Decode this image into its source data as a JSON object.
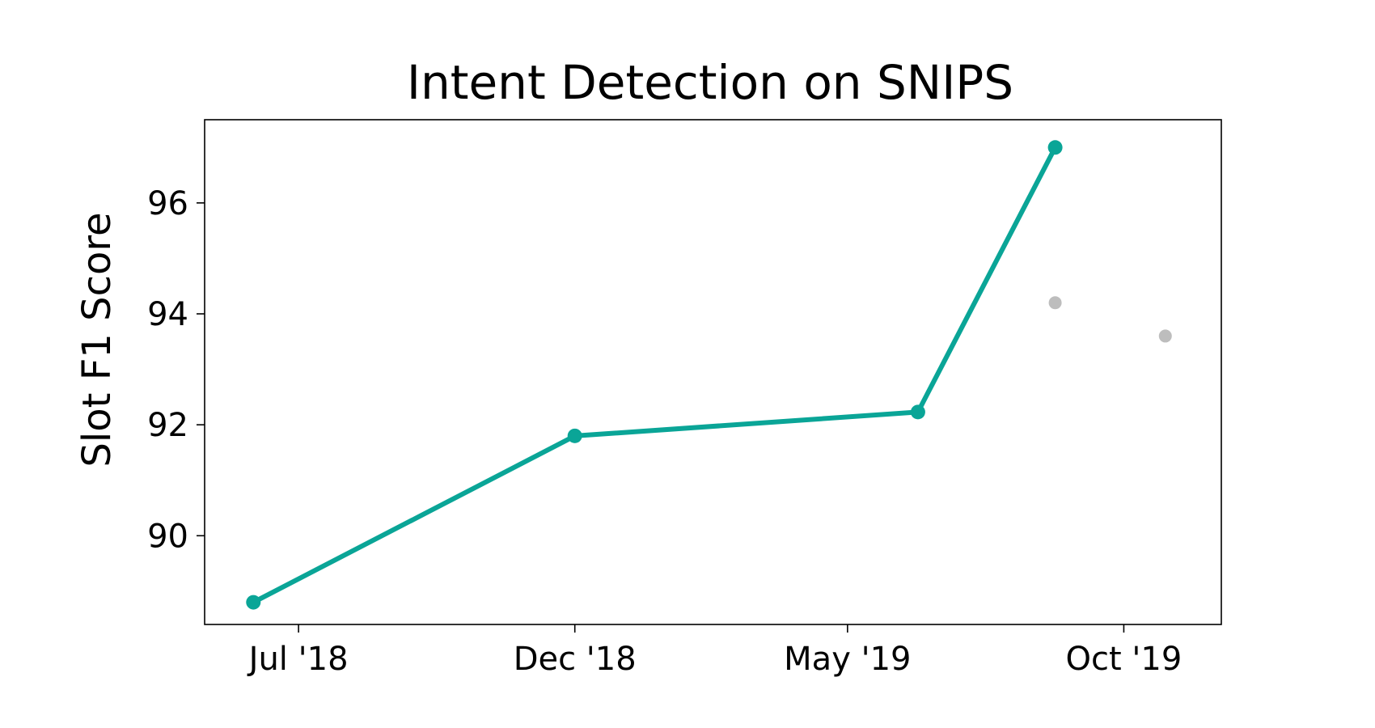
{
  "chart_data": {
    "type": "line",
    "title": "Intent Detection on SNIPS",
    "xlabel": "",
    "ylabel": "Slot F1 Score",
    "xlim": [
      "2018-05-10",
      "2019-11-24"
    ],
    "ylim": [
      88.4,
      97.5
    ],
    "grid": false,
    "x_ticks": [
      {
        "date": "2018-07-01",
        "label": "Jul '18"
      },
      {
        "date": "2018-12-01",
        "label": "Dec '18"
      },
      {
        "date": "2019-05-01",
        "label": "May '19"
      },
      {
        "date": "2019-10-01",
        "label": "Oct '19"
      }
    ],
    "y_ticks": [
      90,
      92,
      94,
      96
    ],
    "series": [
      {
        "color": "#0aa597",
        "marker": "circle",
        "line": true,
        "points": [
          {
            "x": "2018-06-06",
            "y": 88.8
          },
          {
            "x": "2018-12-01",
            "y": 91.8
          },
          {
            "x": "2019-06-09",
            "y": 92.23
          },
          {
            "x": "2019-08-24",
            "y": 97.0
          }
        ]
      },
      {
        "color": "#bdbdbd",
        "marker": "circle",
        "line": false,
        "points": [
          {
            "x": "2019-08-24",
            "y": 94.2
          },
          {
            "x": "2019-10-24",
            "y": 93.6
          }
        ]
      }
    ]
  }
}
